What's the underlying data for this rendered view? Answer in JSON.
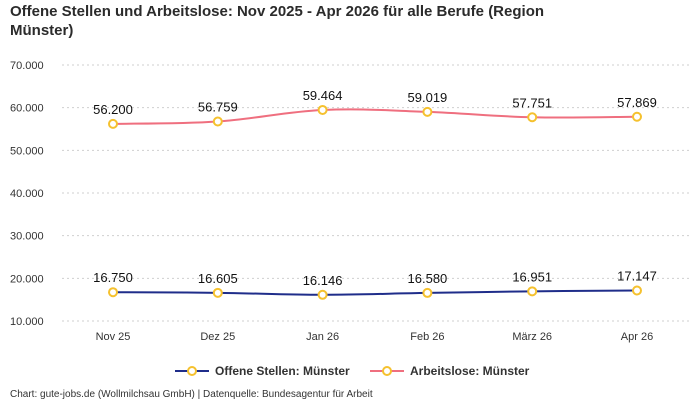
{
  "chart_data": {
    "type": "line",
    "title": "Offene Stellen und Arbeitslose: Nov 2025 - Apr 2026 für alle Berufe (Region Münster)",
    "title_lines": [
      "Offene Stellen und Arbeitslose: Nov 2025 - Apr 2026 für alle Berufe (Region",
      "Münster)"
    ],
    "categories": [
      "Nov 25",
      "Dez 25",
      "Jan 26",
      "Feb 26",
      "März 26",
      "Apr 26"
    ],
    "series": [
      {
        "name": "Offene Stellen: Münster",
        "values": [
          16750,
          16605,
          16146,
          16580,
          16951,
          17147
        ],
        "labels": [
          "16.750",
          "16.605",
          "16.146",
          "16.580",
          "16.951",
          "17.147"
        ],
        "color": "#1f2d8a",
        "marker_color": "#f5c12e"
      },
      {
        "name": "Arbeitslose: Münster",
        "values": [
          56200,
          56759,
          59464,
          59019,
          57751,
          57869
        ],
        "labels": [
          "56.200",
          "56.759",
          "59.464",
          "59.019",
          "57.751",
          "57.869"
        ],
        "color": "#ef6f7f",
        "marker_color": "#f5c12e"
      }
    ],
    "yticks": [
      10000,
      20000,
      30000,
      40000,
      50000,
      60000,
      70000
    ],
    "ytick_labels": [
      "10.000",
      "20.000",
      "30.000",
      "40.000",
      "50.000",
      "60.000",
      "70.000"
    ],
    "ylim": [
      10000,
      70000
    ],
    "grid": true,
    "legend_position": "bottom-center",
    "footer": "Chart: gute-jobs.de (Wollmilchsau GmbH) | Datenquelle: Bundesagentur für Arbeit"
  }
}
